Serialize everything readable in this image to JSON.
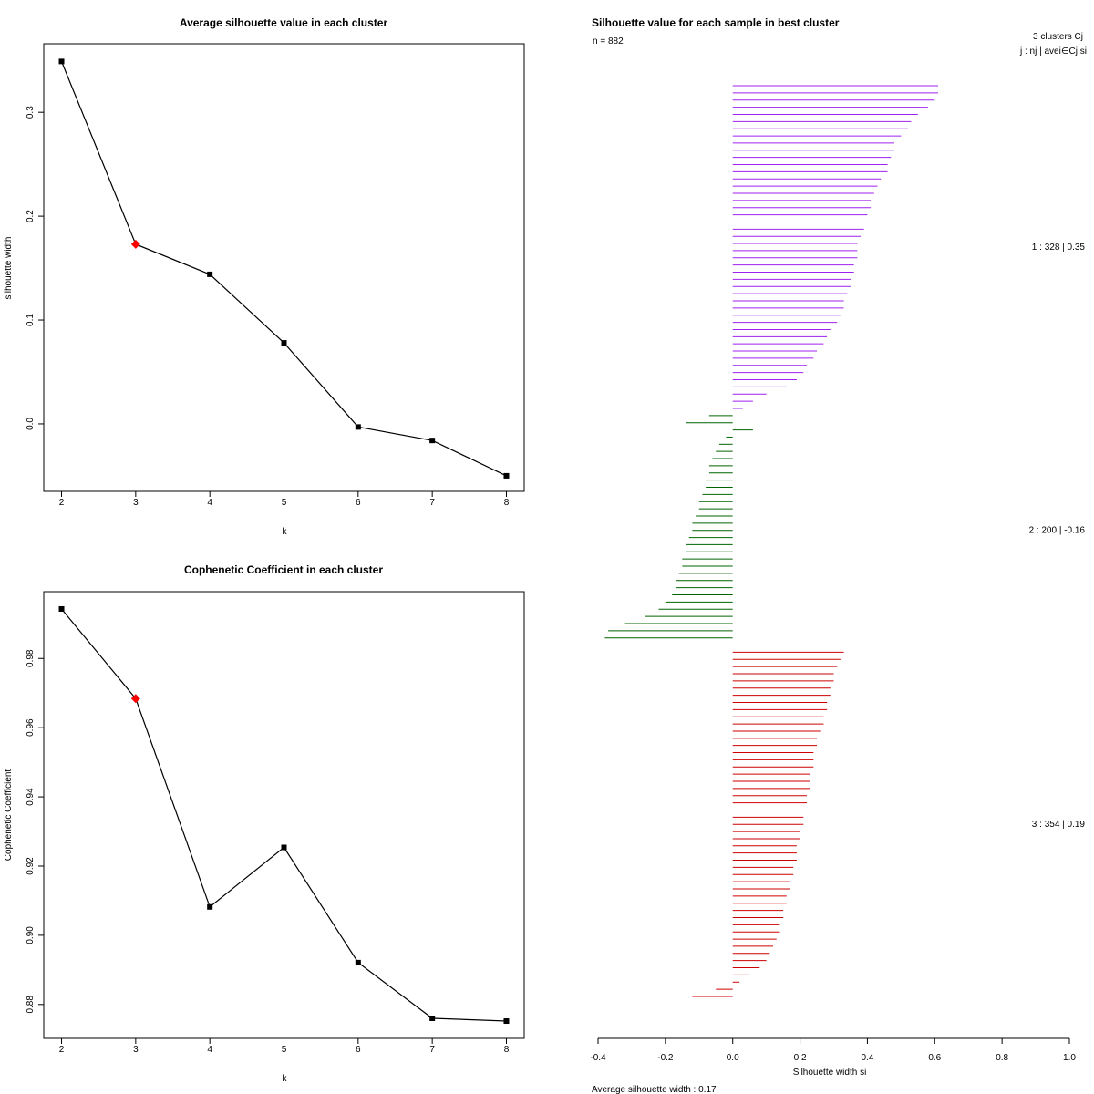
{
  "chart_data": [
    {
      "type": "line",
      "title": "Average silhouette value in each cluster",
      "xlabel": "k",
      "ylabel": "silhouette width",
      "x": [
        2,
        3,
        4,
        5,
        6,
        7,
        8
      ],
      "x_tick_labels": [
        "2",
        "3",
        "4",
        "5",
        "6",
        "7",
        "8"
      ],
      "values": [
        0.349,
        0.173,
        0.144,
        0.078,
        -0.003,
        -0.016,
        -0.05
      ],
      "y_tick_values": [
        0.0,
        0.1,
        0.2,
        0.3
      ],
      "y_tick_labels": [
        "0.0",
        "0.1",
        "0.2",
        "0.3"
      ],
      "ylim": [
        -0.065,
        0.366
      ],
      "xlim": [
        1.76,
        8.24
      ],
      "highlight_index": 1,
      "line_color": "#000000",
      "point_color": "#000000",
      "highlight_color": "#ff0000"
    },
    {
      "type": "line",
      "title": "Cophenetic Coefficient in each cluster",
      "xlabel": "k",
      "ylabel": "Cophenetic Coefficient",
      "x": [
        2,
        3,
        4,
        5,
        6,
        7,
        8
      ],
      "x_tick_labels": [
        "2",
        "3",
        "4",
        "5",
        "6",
        "7",
        "8"
      ],
      "values": [
        0.9943,
        0.9684,
        0.9082,
        0.9254,
        0.8921,
        0.876,
        0.8752
      ],
      "y_tick_values": [
        0.88,
        0.9,
        0.92,
        0.94,
        0.96,
        0.98
      ],
      "y_tick_labels": [
        "0.88",
        "0.90",
        "0.92",
        "0.94",
        "0.96",
        "0.98"
      ],
      "ylim": [
        0.8702,
        0.9993
      ],
      "xlim": [
        1.76,
        8.24
      ],
      "highlight_index": 1,
      "line_color": "#000000",
      "point_color": "#000000",
      "highlight_color": "#ff0000"
    },
    {
      "type": "bar",
      "orientation": "horizontal",
      "title": "Silhouette value for each sample in best cluster",
      "n_label": "n = 882",
      "legend_title": "3  clusters  Cj",
      "legend_subtitle": "j :  nj | avei∈Cj  si",
      "xlabel": "Silhouette width si",
      "footer": "Average silhouette width :  0.17",
      "x_tick_values": [
        -0.4,
        -0.2,
        0.0,
        0.2,
        0.4,
        0.6,
        0.8,
        1.0
      ],
      "x_tick_labels": [
        "-0.4",
        "-0.2",
        "0.0",
        "0.2",
        "0.4",
        "0.6",
        "0.8",
        "1.0"
      ],
      "xlim": [
        -0.4,
        1.0
      ],
      "clusters": [
        {
          "label": "1 :  328  |  0.35",
          "color": "#a020f0",
          "values": [
            0.61,
            0.61,
            0.6,
            0.58,
            0.55,
            0.53,
            0.52,
            0.5,
            0.48,
            0.48,
            0.47,
            0.46,
            0.46,
            0.44,
            0.43,
            0.42,
            0.41,
            0.41,
            0.4,
            0.39,
            0.39,
            0.38,
            0.37,
            0.37,
            0.37,
            0.36,
            0.36,
            0.35,
            0.35,
            0.34,
            0.33,
            0.33,
            0.32,
            0.31,
            0.29,
            0.28,
            0.27,
            0.25,
            0.24,
            0.22,
            0.21,
            0.19,
            0.16,
            0.1,
            0.06,
            0.03
          ]
        },
        {
          "label": "2 :  200  |  -0.16",
          "color": "#006400",
          "values": [
            -0.07,
            -0.14,
            0.06,
            -0.02,
            -0.04,
            -0.05,
            -0.06,
            -0.07,
            -0.07,
            -0.08,
            -0.08,
            -0.09,
            -0.1,
            -0.1,
            -0.11,
            -0.12,
            -0.12,
            -0.13,
            -0.14,
            -0.14,
            -0.15,
            -0.15,
            -0.16,
            -0.17,
            -0.17,
            -0.18,
            -0.2,
            -0.22,
            -0.26,
            -0.32,
            -0.37,
            -0.38,
            -0.39
          ]
        },
        {
          "label": "3 :  354  |  0.19",
          "color": "#cd0000",
          "values": [
            0.33,
            0.32,
            0.31,
            0.3,
            0.3,
            0.29,
            0.29,
            0.28,
            0.28,
            0.27,
            0.27,
            0.26,
            0.25,
            0.25,
            0.24,
            0.24,
            0.24,
            0.23,
            0.23,
            0.23,
            0.22,
            0.22,
            0.22,
            0.21,
            0.21,
            0.2,
            0.2,
            0.19,
            0.19,
            0.19,
            0.18,
            0.18,
            0.17,
            0.17,
            0.16,
            0.16,
            0.15,
            0.15,
            0.14,
            0.14,
            0.13,
            0.12,
            0.11,
            0.1,
            0.08,
            0.05,
            0.02,
            -0.05,
            -0.12
          ]
        }
      ]
    }
  ]
}
